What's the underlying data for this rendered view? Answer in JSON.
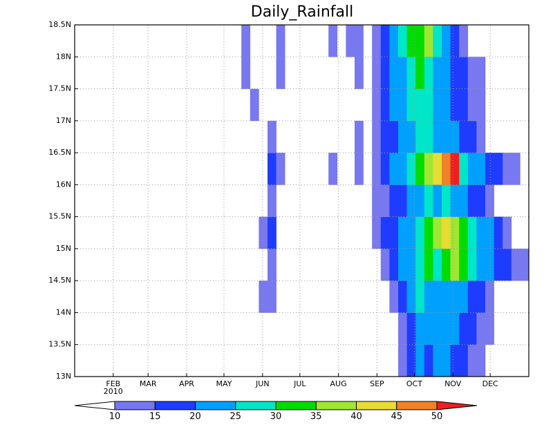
{
  "chart_data": {
    "type": "heatmap",
    "title": "Daily_Rainfall",
    "xlim": [
      1,
      366
    ],
    "ylim": [
      13,
      18.5
    ],
    "xticks": [
      {
        "value": 32,
        "label": "FEB"
      },
      {
        "value": 60,
        "label": "MAR"
      },
      {
        "value": 91,
        "label": "APR"
      },
      {
        "value": 121,
        "label": "MAY"
      },
      {
        "value": 152,
        "label": "JUN"
      },
      {
        "value": 182,
        "label": "JUL"
      },
      {
        "value": 213,
        "label": "AUG"
      },
      {
        "value": 244,
        "label": "SEP"
      },
      {
        "value": 274,
        "label": "OCT"
      },
      {
        "value": 305,
        "label": "NOV"
      },
      {
        "value": 335,
        "label": "DEC"
      }
    ],
    "x_year_label": "2010",
    "yticks": [
      {
        "value": 13,
        "label": "13N"
      },
      {
        "value": 13.5,
        "label": "13.5N"
      },
      {
        "value": 14,
        "label": "14N"
      },
      {
        "value": 14.5,
        "label": "14.5N"
      },
      {
        "value": 15,
        "label": "15N"
      },
      {
        "value": 15.5,
        "label": "15.5N"
      },
      {
        "value": 16,
        "label": "16N"
      },
      {
        "value": 16.5,
        "label": "16.5N"
      },
      {
        "value": 17,
        "label": "17N"
      },
      {
        "value": 17.5,
        "label": "17.5N"
      },
      {
        "value": 18,
        "label": "18N"
      },
      {
        "value": 18.5,
        "label": "18.5N"
      }
    ],
    "grid": true,
    "xbins": [
      121,
      128,
      135,
      142,
      149,
      156,
      163,
      170,
      177,
      184,
      191,
      198,
      205,
      212,
      219,
      226,
      233,
      240,
      247,
      254,
      261,
      268,
      275,
      282,
      289,
      296,
      303,
      310,
      317,
      324,
      331,
      338,
      345,
      352,
      359,
      366
    ],
    "ybins": [
      13,
      13.5,
      14,
      14.5,
      15,
      15.5,
      16,
      16.5,
      17,
      17.5,
      18,
      18.5
    ],
    "values": [
      [
        null,
        null,
        null,
        null,
        null,
        null,
        null,
        null,
        null,
        null,
        null,
        null,
        null,
        null,
        null,
        null,
        null,
        null,
        null,
        null,
        12,
        15,
        20,
        15,
        20,
        20,
        15,
        15,
        12,
        12,
        null,
        null,
        null,
        null,
        null
      ],
      [
        null,
        null,
        null,
        null,
        null,
        null,
        null,
        null,
        null,
        null,
        null,
        null,
        null,
        null,
        null,
        null,
        null,
        null,
        null,
        null,
        12,
        15,
        20,
        20,
        20,
        20,
        20,
        15,
        15,
        12,
        12,
        null,
        null,
        null,
        null
      ],
      [
        null,
        null,
        null,
        null,
        12,
        12,
        null,
        null,
        null,
        null,
        null,
        null,
        null,
        null,
        null,
        null,
        null,
        null,
        null,
        12,
        15,
        20,
        25,
        20,
        20,
        20,
        20,
        20,
        15,
        15,
        12,
        null,
        null,
        null,
        null
      ],
      [
        null,
        null,
        null,
        null,
        null,
        12,
        null,
        null,
        null,
        null,
        null,
        null,
        null,
        null,
        null,
        null,
        null,
        null,
        12,
        15,
        20,
        20,
        25,
        30,
        25,
        30,
        35,
        30,
        25,
        20,
        20,
        15,
        15,
        12,
        12
      ],
      [
        null,
        null,
        null,
        null,
        12,
        15,
        null,
        null,
        null,
        null,
        null,
        null,
        null,
        null,
        null,
        null,
        null,
        12,
        15,
        15,
        20,
        20,
        25,
        30,
        35,
        40,
        35,
        30,
        25,
        20,
        20,
        15,
        12,
        null,
        null
      ],
      [
        null,
        null,
        null,
        null,
        null,
        12,
        null,
        null,
        null,
        null,
        null,
        null,
        null,
        null,
        null,
        null,
        null,
        12,
        12,
        15,
        15,
        20,
        20,
        25,
        20,
        25,
        20,
        20,
        15,
        15,
        12,
        null,
        null,
        null,
        null
      ],
      [
        null,
        null,
        null,
        null,
        null,
        15,
        12,
        null,
        null,
        null,
        null,
        null,
        12,
        null,
        null,
        12,
        null,
        12,
        15,
        20,
        20,
        25,
        30,
        35,
        40,
        45,
        50,
        25,
        20,
        20,
        15,
        15,
        12,
        12,
        null
      ],
      [
        null,
        null,
        null,
        null,
        null,
        12,
        null,
        null,
        null,
        null,
        null,
        null,
        null,
        null,
        null,
        12,
        null,
        12,
        15,
        15,
        20,
        20,
        25,
        25,
        20,
        20,
        20,
        15,
        15,
        12,
        null,
        null,
        null,
        null,
        null
      ],
      [
        null,
        null,
        null,
        12,
        null,
        null,
        null,
        null,
        null,
        null,
        null,
        null,
        null,
        null,
        null,
        null,
        null,
        12,
        15,
        20,
        20,
        25,
        25,
        25,
        20,
        20,
        15,
        15,
        12,
        12,
        null,
        null,
        null,
        null,
        null
      ],
      [
        null,
        null,
        12,
        null,
        null,
        null,
        12,
        null,
        null,
        null,
        null,
        null,
        null,
        null,
        null,
        12,
        null,
        12,
        15,
        20,
        20,
        25,
        30,
        25,
        20,
        20,
        15,
        15,
        12,
        12,
        null,
        null,
        null,
        null,
        null
      ],
      [
        null,
        null,
        12,
        null,
        null,
        null,
        12,
        null,
        null,
        null,
        null,
        null,
        12,
        null,
        12,
        12,
        null,
        12,
        15,
        20,
        25,
        30,
        30,
        35,
        25,
        20,
        15,
        12,
        null,
        null,
        null,
        null,
        null,
        null,
        null
      ]
    ],
    "levels": [
      10,
      15,
      20,
      25,
      30,
      35,
      40,
      45,
      50
    ],
    "colors": [
      "#ffffff",
      "#7878f0",
      "#1e3cff",
      "#00a0ff",
      "#00e6c8",
      "#00dc00",
      "#a0e632",
      "#e6dc32",
      "#f08228",
      "#f01e1e"
    ]
  }
}
